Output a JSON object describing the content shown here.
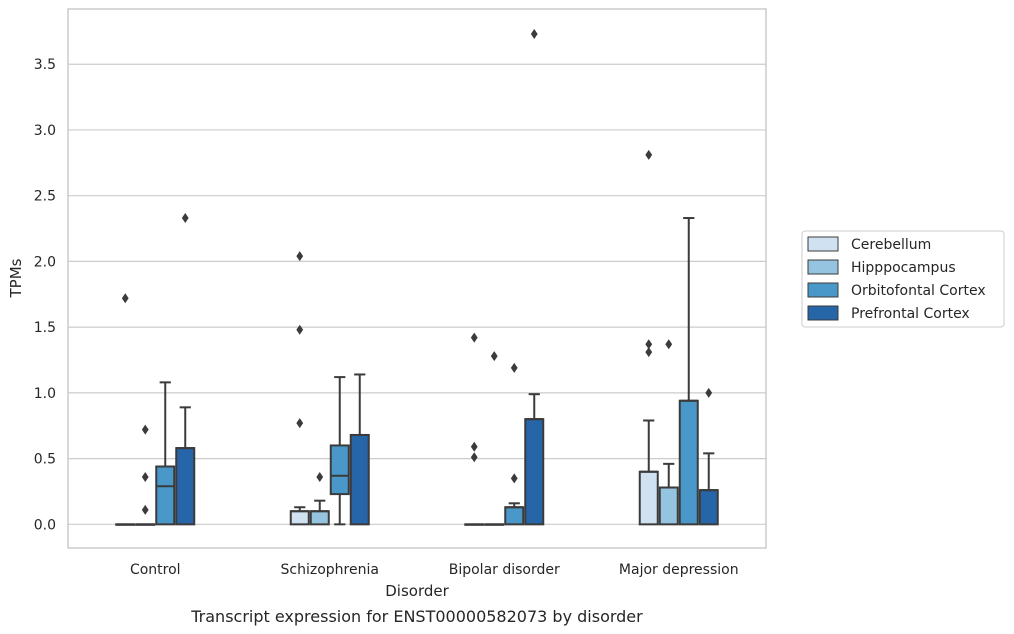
{
  "chart_data": {
    "type": "box",
    "caption": "Transcript expression for ENST00000582073 by disorder",
    "xlabel": "Disorder",
    "ylabel": "TPMs",
    "ylim": [
      -0.18,
      3.92
    ],
    "yticks": [
      "0.0",
      "0.5",
      "1.0",
      "1.5",
      "2.0",
      "2.5",
      "3.0",
      "3.5"
    ],
    "ytick_values": [
      0,
      0.5,
      1.0,
      1.5,
      2.0,
      2.5,
      3.0,
      3.5
    ],
    "grid": true,
    "legend_position": "right",
    "categories": [
      "Control",
      "Schizophrenia",
      "Bipolar disorder",
      "Major depression"
    ],
    "series": [
      {
        "name": "Cerebellum",
        "color": "#d0e1f2",
        "boxes": [
          {
            "whisker_low": 0,
            "q1": 0,
            "median": 0,
            "q3": 0,
            "whisker_high": 0,
            "outliers": [
              1.72
            ]
          },
          {
            "whisker_low": 0,
            "q1": 0,
            "median": 0.1,
            "q3": 0.1,
            "whisker_high": 0.13,
            "outliers": [
              2.04,
              1.48,
              0.77
            ]
          },
          {
            "whisker_low": 0,
            "q1": 0,
            "median": 0,
            "q3": 0,
            "whisker_high": 0,
            "outliers": [
              1.42,
              0.59,
              0.51
            ]
          },
          {
            "whisker_low": 0,
            "q1": 0,
            "median": 0.4,
            "q3": 0.4,
            "whisker_high": 0.79,
            "outliers": [
              2.81,
              1.37,
              1.31
            ]
          }
        ]
      },
      {
        "name": "Hipppocampus",
        "color": "#94c4df",
        "boxes": [
          {
            "whisker_low": 0,
            "q1": 0,
            "median": 0,
            "q3": 0,
            "whisker_high": 0,
            "outliers": [
              0.72,
              0.36,
              0.11
            ]
          },
          {
            "whisker_low": 0,
            "q1": 0,
            "median": 0.1,
            "q3": 0.1,
            "whisker_high": 0.18,
            "outliers": [
              0.36
            ]
          },
          {
            "whisker_low": 0,
            "q1": 0,
            "median": 0,
            "q3": 0,
            "whisker_high": 0,
            "outliers": [
              1.28
            ]
          },
          {
            "whisker_low": 0,
            "q1": 0,
            "median": 0.28,
            "q3": 0.28,
            "whisker_high": 0.46,
            "outliers": [
              1.37
            ]
          }
        ]
      },
      {
        "name": "Orbitofontal Cortex",
        "color": "#4a98c9",
        "boxes": [
          {
            "whisker_low": 0,
            "q1": 0,
            "median": 0.29,
            "q3": 0.44,
            "whisker_high": 1.08,
            "outliers": []
          },
          {
            "whisker_low": 0,
            "q1": 0.23,
            "median": 0.37,
            "q3": 0.6,
            "whisker_high": 1.12,
            "outliers": []
          },
          {
            "whisker_low": 0,
            "q1": 0,
            "median": 0.13,
            "q3": 0.13,
            "whisker_high": 0.16,
            "outliers": [
              1.19,
              0.35
            ]
          },
          {
            "whisker_low": 0,
            "q1": 0,
            "median": 0.94,
            "q3": 0.94,
            "whisker_high": 2.33,
            "outliers": []
          }
        ]
      },
      {
        "name": "Prefrontal Cortex",
        "color": "#2565a8",
        "boxes": [
          {
            "whisker_low": 0,
            "q1": 0,
            "median": 0.58,
            "q3": 0.58,
            "whisker_high": 0.89,
            "outliers": [
              2.33
            ]
          },
          {
            "whisker_low": 0,
            "q1": 0,
            "median": 0.68,
            "q3": 0.68,
            "whisker_high": 1.14,
            "outliers": []
          },
          {
            "whisker_low": 0,
            "q1": 0,
            "median": 0.8,
            "q3": 0.8,
            "whisker_high": 0.99,
            "outliers": [
              3.73
            ]
          },
          {
            "whisker_low": 0,
            "q1": 0,
            "median": 0.26,
            "q3": 0.26,
            "whisker_high": 0.54,
            "outliers": [
              1.0
            ]
          }
        ]
      }
    ]
  }
}
